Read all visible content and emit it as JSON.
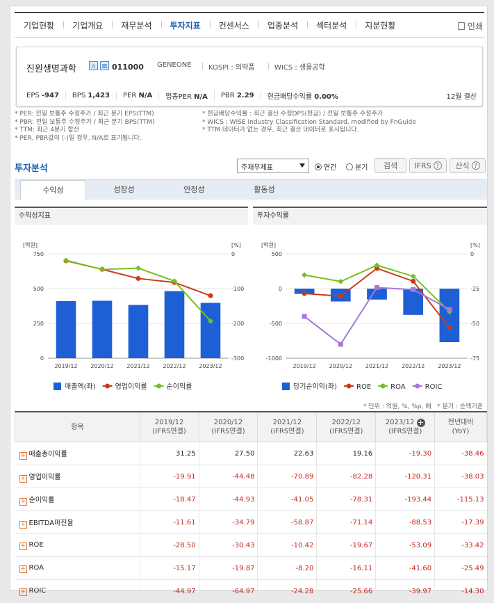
{
  "nav": {
    "items": [
      "기업현황",
      "기업개요",
      "재무분석",
      "투자지표",
      "컨센서스",
      "업종분석",
      "섹터분석",
      "지분현황"
    ],
    "active_index": 3,
    "print_label": "인쇄"
  },
  "company": {
    "name": "진원생명과학",
    "code": "011000",
    "eng_name": "GENEONE",
    "market": "KOSPI : 의약품",
    "wics": "WICS : 생물공학",
    "stats": [
      {
        "label": "EPS",
        "value": "-947"
      },
      {
        "label": "BPS",
        "value": "1,423"
      },
      {
        "label": "PER",
        "value": "N/A"
      },
      {
        "label": "업종PER",
        "value": "N/A"
      },
      {
        "label": "PBR",
        "value": "2.29"
      },
      {
        "label": "현금배당수익률",
        "value": "0.00%"
      }
    ],
    "settlement": "12월 결산"
  },
  "notes": {
    "left": [
      "* PER: 전일 보통주 수정주가 / 최근 분기 EPS(TTM)",
      "* PBR: 전일 보통주 수정주가 / 최근 분기 BPS(TTM)",
      "* TTM: 최근 4분기 합산",
      "* PER, PBR값이 (-)일 경우, N/A로 표기됩니다."
    ],
    "right": [
      "* 현금배당수익률 : 최근 결산 수정DPS(현금) / 전일 보통주 수정주가",
      "* WICS : WISE Industry Classification Standard, modified by FnGuide",
      "* TTM 데이터가 없는 경우, 최근 결산 데이터로 표시됩니다."
    ]
  },
  "analysis": {
    "title": "투자분석",
    "select_value": "주재무제표",
    "radio_annual": "연간",
    "radio_quarter": "분기",
    "search_label": "검색",
    "ifrs_label": "IFRS",
    "formula_label": "산식"
  },
  "tabs": [
    "수익성",
    "성장성",
    "안정성",
    "활동성"
  ],
  "charts": {
    "left_title": "수익성지표",
    "right_title": "투자수익률"
  },
  "chart_data": [
    {
      "type": "bar",
      "categories": [
        "2019/12",
        "2020/12",
        "2021/12",
        "2022/12",
        "2023/12"
      ],
      "ylabel_left": "[억원]",
      "ylabel_right": "[%]",
      "ylim_left": [
        0,
        750
      ],
      "ylim_right": [
        -300,
        0
      ],
      "yticks_left": [
        "750",
        "500",
        "250",
        "0"
      ],
      "yticks_right": [
        "0",
        "-100",
        "-200",
        "-300"
      ],
      "series": [
        {
          "name": "매출액(좌)",
          "kind": "bar",
          "axis": "left",
          "color": "#1f5fd6",
          "values": [
            410,
            413,
            383,
            482,
            398
          ]
        },
        {
          "name": "영업이익률",
          "kind": "line",
          "axis": "right",
          "color": "#cc3a1b",
          "values": [
            -19.91,
            -44.48,
            -70.89,
            -82.28,
            -120.31
          ]
        },
        {
          "name": "순이익률",
          "kind": "line",
          "axis": "right",
          "color": "#74c21f",
          "values": [
            -18.47,
            -44.93,
            -41.05,
            -78.31,
            -193.44
          ]
        }
      ]
    },
    {
      "type": "bar",
      "categories": [
        "2019/12",
        "2020/12",
        "2021/12",
        "2022/12",
        "2023/12"
      ],
      "ylabel_left": "[억원]",
      "ylabel_right": "[%]",
      "ylim_left": [
        -1000,
        500
      ],
      "ylim_right": [
        -75,
        0
      ],
      "yticks_left": [
        "500",
        "0",
        "-500",
        "-1000"
      ],
      "yticks_right": [
        "0",
        "-25",
        "-50",
        "-75"
      ],
      "series": [
        {
          "name": "당기순이익(좌)",
          "kind": "bar",
          "axis": "left",
          "color": "#1f5fd6",
          "values": [
            -76,
            -185,
            -157,
            -378,
            -770
          ]
        },
        {
          "name": "ROE",
          "kind": "line",
          "axis": "right",
          "color": "#cc3a1b",
          "values": [
            -28.5,
            -30.43,
            -10.42,
            -19.67,
            -53.09
          ]
        },
        {
          "name": "ROA",
          "kind": "line",
          "axis": "right",
          "color": "#74c21f",
          "values": [
            -15.17,
            -19.87,
            -8.2,
            -16.11,
            -41.6
          ]
        },
        {
          "name": "ROIC",
          "kind": "line",
          "axis": "right",
          "color": "#a677db",
          "values": [
            -44.97,
            -64.97,
            -24.28,
            -25.66,
            -39.97
          ]
        }
      ]
    }
  ],
  "table": {
    "unit_note": "* 단위 : 억원, %, %p, 배",
    "quarter_note": "* 분기 : 순액기준",
    "header_item": "항목",
    "columns": [
      {
        "year": "2019/12",
        "basis": "(IFRS연결)"
      },
      {
        "year": "2020/12",
        "basis": "(IFRS연결)"
      },
      {
        "year": "2021/12",
        "basis": "(IFRS연결)"
      },
      {
        "year": "2022/12",
        "basis": "(IFRS연결)"
      },
      {
        "year": "2023/12",
        "basis": "(IFRS연결)"
      },
      {
        "year": "전년대비",
        "basis": "(YoY)"
      }
    ],
    "rows": [
      {
        "label": "매출총이익률",
        "values": [
          "31.25",
          "27.50",
          "22.63",
          "19.16",
          "-19.30",
          "-38.46"
        ]
      },
      {
        "label": "영업이익률",
        "values": [
          "-19.91",
          "-44.48",
          "-70.89",
          "-82.28",
          "-120.31",
          "-38.03"
        ]
      },
      {
        "label": "순이익률",
        "values": [
          "-18.47",
          "-44.93",
          "-41.05",
          "-78.31",
          "-193.44",
          "-115.13"
        ]
      },
      {
        "label": "EBITDA마진율",
        "values": [
          "-11.61",
          "-34.79",
          "-58.87",
          "-71.14",
          "-88.53",
          "-17.39"
        ]
      },
      {
        "label": "ROE",
        "values": [
          "-28.50",
          "-30.43",
          "-10.42",
          "-19.67",
          "-53.09",
          "-33.42"
        ]
      },
      {
        "label": "ROA",
        "values": [
          "-15.17",
          "-19.87",
          "-8.20",
          "-16.11",
          "-41.60",
          "-25.49"
        ]
      },
      {
        "label": "ROIC",
        "values": [
          "-44.97",
          "-64.97",
          "-24.28",
          "-25.66",
          "-39.97",
          "-14.30"
        ]
      }
    ]
  }
}
